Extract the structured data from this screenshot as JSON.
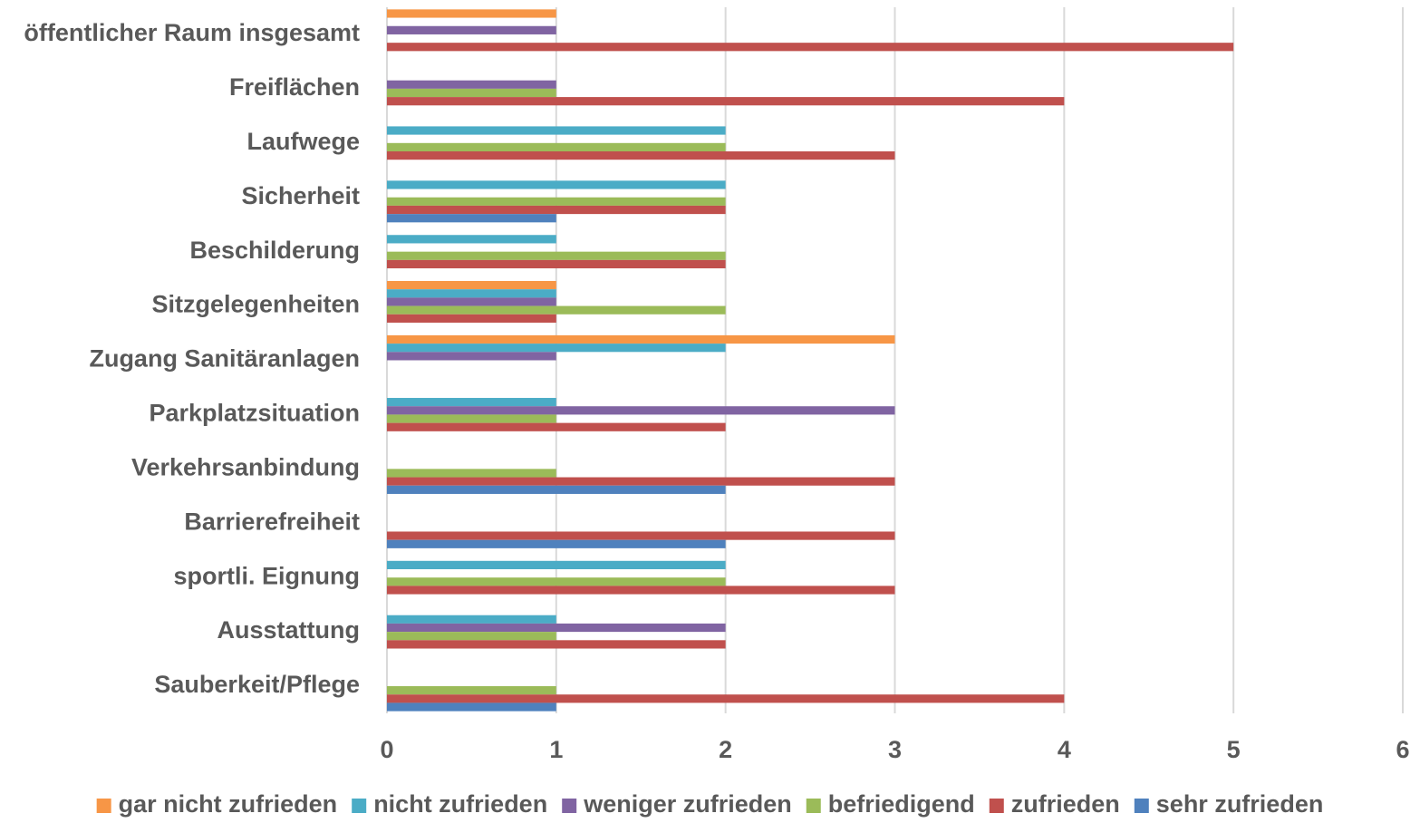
{
  "chart_data": {
    "type": "bar",
    "orientation": "horizontal",
    "title": "",
    "xlabel": "",
    "ylabel": "",
    "xlim": [
      0,
      6
    ],
    "x_ticks": [
      0,
      1,
      2,
      3,
      4,
      5,
      6
    ],
    "grid": "vertical",
    "legend_position": "bottom",
    "categories": [
      "öffentlicher Raum insgesamt",
      "Freiflächen",
      "Laufwege",
      "Sicherheit",
      "Beschilderung",
      "Sitzgelegenheiten",
      "Zugang Sanitäranlagen",
      "Parkplatzsituation",
      "Verkehrsanbindung",
      "Barrierefreiheit",
      "sportli. Eignung",
      "Ausstattung",
      "Sauberkeit/Pflege"
    ],
    "series": [
      {
        "name": "gar nicht zufrieden",
        "color": "#f79646",
        "values": [
          1,
          0,
          0,
          0,
          0,
          1,
          3,
          0,
          0,
          0,
          0,
          0,
          0
        ]
      },
      {
        "name": "nicht zufrieden",
        "color": "#4bacc6",
        "values": [
          0,
          0,
          2,
          2,
          1,
          1,
          2,
          1,
          0,
          0,
          2,
          1,
          0
        ]
      },
      {
        "name": "weniger zufrieden",
        "color": "#8064a2",
        "values": [
          1,
          1,
          0,
          0,
          0,
          1,
          1,
          3,
          0,
          0,
          0,
          2,
          0
        ]
      },
      {
        "name": "befriedigend",
        "color": "#9bbb59",
        "values": [
          0,
          1,
          2,
          2,
          2,
          2,
          0,
          1,
          1,
          0,
          2,
          1,
          1
        ]
      },
      {
        "name": "zufrieden",
        "color": "#c0504d",
        "values": [
          5,
          4,
          3,
          2,
          2,
          1,
          0,
          2,
          3,
          3,
          3,
          2,
          4
        ]
      },
      {
        "name": "sehr zufrieden",
        "color": "#4f81bd",
        "values": [
          0,
          0,
          0,
          1,
          0,
          0,
          0,
          0,
          2,
          2,
          0,
          0,
          1
        ]
      }
    ]
  }
}
